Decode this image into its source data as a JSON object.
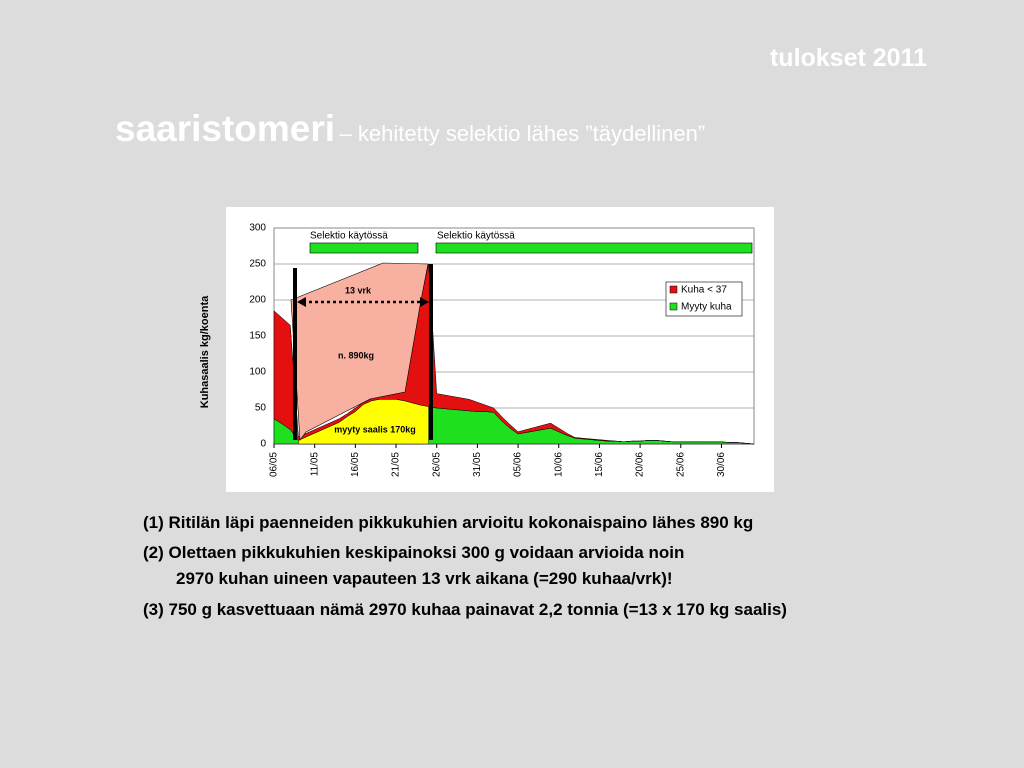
{
  "slide": {
    "header": "tulokset 2011",
    "title": "saaristomeri",
    "subtitle": "– kehitetty selektio lähes ”täydellinen”",
    "notes": [
      "(1) Ritilän läpi paenneiden pikkukuhien arvioitu kokonaispaino lähes 890 kg",
      "(2) Olettaen pikkukuhien keskipainoksi 300 g voidaan arvioida noin",
      "2970 kuhan uineen vapauteen 13 vrk aikana (=290 kuhaa/vrk)!",
      "(3) 750 g kasvettuaan nämä 2970 kuhaa painavat 2,2 tonnia (=13 x 170 kg saalis)"
    ]
  },
  "chart_data": {
    "type": "area",
    "stacked": true,
    "ylabel": "Kuhasaalis kg/koenta",
    "categories": [
      "06/05",
      null,
      null,
      null,
      null,
      "11/05",
      null,
      null,
      null,
      null,
      "16/05",
      null,
      null,
      null,
      null,
      "21/05",
      null,
      null,
      null,
      null,
      "26/05",
      null,
      null,
      null,
      null,
      "31/05",
      null,
      null,
      null,
      null,
      "05/06",
      null,
      null,
      null,
      null,
      "10/06",
      null,
      null,
      null,
      null,
      "15/06",
      null,
      null,
      null,
      null,
      "20/06",
      null,
      null,
      null,
      null,
      "25/06",
      null,
      null,
      null,
      null,
      "30/06",
      null,
      null,
      null,
      null
    ],
    "series": [
      {
        "name": "Kuha < 37",
        "color": "#e41010",
        "values": [
          150,
          147,
          145,
          5,
          5,
          5,
          5,
          5,
          5,
          4,
          5,
          3,
          3,
          4,
          6,
          8,
          12,
          73,
          146,
          198,
          20,
          19,
          18,
          17,
          16,
          13,
          9,
          6,
          6,
          5,
          3,
          4,
          5,
          6,
          7,
          5,
          3,
          1,
          1,
          1,
          1,
          1,
          0,
          0,
          0,
          0,
          0,
          0,
          0,
          0,
          0,
          0,
          0,
          0,
          0,
          0,
          0,
          0,
          0,
          0
        ]
      },
      {
        "name": "Myyty kuha",
        "color": "#1ee01e",
        "values": [
          35,
          28,
          20,
          5,
          10,
          15,
          20,
          25,
          30,
          38,
          45,
          55,
          60,
          62,
          62,
          62,
          60,
          57,
          54,
          52,
          50,
          49,
          48,
          47,
          46,
          45,
          45,
          44,
          32,
          22,
          14,
          16,
          18,
          20,
          22,
          17,
          12,
          8,
          7,
          6,
          5,
          4,
          4,
          3,
          4,
          4,
          5,
          5,
          4,
          3,
          3,
          3,
          3,
          3,
          3,
          3,
          2,
          2,
          1,
          0
        ]
      }
    ],
    "ylim": [
      0,
      300
    ],
    "yticks": [
      0,
      50,
      100,
      150,
      200,
      250,
      300
    ],
    "grid": true,
    "legend": "right",
    "annotations": [
      "Selektio käytössä",
      "Selektio käytössä",
      "13 vrk",
      "n. 890kg",
      "myyty saalis  170kg"
    ]
  }
}
